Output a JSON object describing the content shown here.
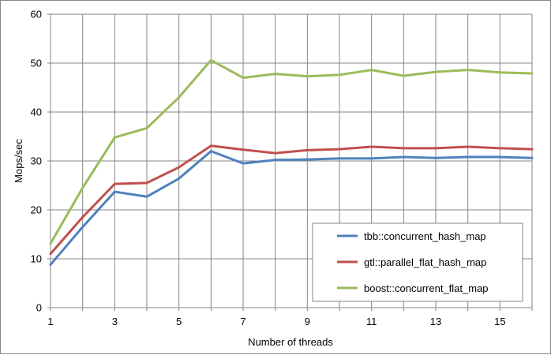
{
  "chart_data": {
    "type": "line",
    "title": "",
    "xlabel": "Number of threads",
    "ylabel": "Mops/sec",
    "xlim": [
      1,
      16
    ],
    "ylim": [
      0,
      60
    ],
    "x_ticks": [
      1,
      3,
      5,
      7,
      9,
      11,
      13,
      15
    ],
    "y_ticks": [
      0,
      10,
      20,
      30,
      40,
      50,
      60
    ],
    "grid": true,
    "legend_position": "bottom-right",
    "x": [
      1,
      2,
      3,
      4,
      5,
      6,
      7,
      8,
      9,
      10,
      11,
      12,
      13,
      14,
      15,
      16
    ],
    "series": [
      {
        "name": "tbb::concurrent_hash_map",
        "color": "#4f81bd",
        "values": [
          8.8,
          16.5,
          23.7,
          22.7,
          26.4,
          32.0,
          29.5,
          30.2,
          30.3,
          30.5,
          30.5,
          30.8,
          30.6,
          30.8,
          30.8,
          30.6
        ]
      },
      {
        "name": "gtl::parallel_flat_hash_map",
        "color": "#c0504d",
        "values": [
          11.0,
          18.5,
          25.3,
          25.5,
          28.7,
          33.1,
          32.3,
          31.6,
          32.2,
          32.4,
          32.9,
          32.6,
          32.6,
          32.9,
          32.6,
          32.4
        ]
      },
      {
        "name": "boost::concurrent_flat_map",
        "color": "#9bbb59",
        "values": [
          13.1,
          24.5,
          34.8,
          36.7,
          43.0,
          50.6,
          47.0,
          47.8,
          47.3,
          47.6,
          48.6,
          47.4,
          48.2,
          48.6,
          48.1,
          47.9
        ]
      }
    ]
  }
}
